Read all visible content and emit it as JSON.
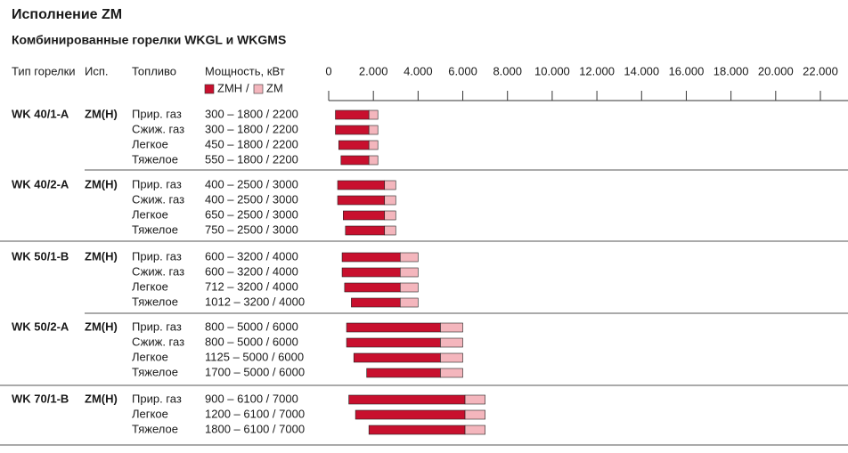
{
  "chart_data": {
    "type": "range-bar",
    "title": "Исполнение ZM",
    "subtitle": "Комбинированные горелки WKGL и WKGMS",
    "columns": [
      "Тип горелки",
      "Исп.",
      "Топливо",
      "Мощность, кВт"
    ],
    "series": [
      {
        "name": "ZMH",
        "color": "#c8102e"
      },
      {
        "name": "ZM",
        "color": "#f4b6bd"
      }
    ],
    "legend_separator": "/",
    "xlim": [
      0,
      22000
    ],
    "xticks": [
      0,
      {
        "value": 2000,
        "label": "2.000"
      },
      {
        "value": 4000,
        "label": "4.000"
      },
      {
        "value": 6000,
        "label": "6.000"
      },
      {
        "value": 8000,
        "label": "8.000"
      },
      {
        "value": 10000,
        "label": "10.000"
      },
      {
        "value": 12000,
        "label": "12.000"
      },
      {
        "value": 14000,
        "label": "14.000"
      },
      {
        "value": 16000,
        "label": "16.000"
      },
      {
        "value": 18000,
        "label": "18.000"
      },
      {
        "value": 20000,
        "label": "20.000"
      },
      {
        "value": 22000,
        "label": "22.000"
      }
    ],
    "groups": [
      {
        "model": "WK 40/1-A",
        "version": "ZM(H)",
        "rows": [
          {
            "fuel": "Прир. газ",
            "power": "300 – 1800 / 2200",
            "values": [
              300,
              1800,
              2200
            ]
          },
          {
            "fuel": "Сжиж. газ",
            "power": "300 – 1800 / 2200",
            "values": [
              300,
              1800,
              2200
            ]
          },
          {
            "fuel": "Легкое",
            "power": "450 – 1800 / 2200",
            "values": [
              450,
              1800,
              2200
            ]
          },
          {
            "fuel": "Тяжелое",
            "power": "550 – 1800 / 2200",
            "values": [
              550,
              1800,
              2200
            ]
          }
        ]
      },
      {
        "model": "WK 40/2-A",
        "version": "ZM(H)",
        "rows": [
          {
            "fuel": "Прир. газ",
            "power": "400 – 2500 / 3000",
            "values": [
              400,
              2500,
              3000
            ]
          },
          {
            "fuel": "Сжиж. газ",
            "power": "400 – 2500 / 3000",
            "values": [
              400,
              2500,
              3000
            ]
          },
          {
            "fuel": "Легкое",
            "power": "650 – 2500 / 3000",
            "values": [
              650,
              2500,
              3000
            ]
          },
          {
            "fuel": "Тяжелое",
            "power": "750 – 2500 / 3000",
            "values": [
              750,
              2500,
              3000
            ]
          }
        ]
      },
      {
        "model": "WK 50/1-B",
        "version": "ZM(H)",
        "rows": [
          {
            "fuel": "Прир. газ",
            "power": "600 – 3200 / 4000",
            "values": [
              600,
              3200,
              4000
            ]
          },
          {
            "fuel": "Сжиж. газ",
            "power": "600 – 3200 / 4000",
            "values": [
              600,
              3200,
              4000
            ]
          },
          {
            "fuel": "Легкое",
            "power": "712 – 3200 / 4000",
            "values": [
              712,
              3200,
              4000
            ]
          },
          {
            "fuel": "Тяжелое",
            "power": "1012 – 3200 / 4000",
            "values": [
              1012,
              3200,
              4000
            ]
          }
        ]
      },
      {
        "model": "WK 50/2-A",
        "version": "ZM(H)",
        "rows": [
          {
            "fuel": "Прир. газ",
            "power": "800 – 5000 / 6000",
            "values": [
              800,
              5000,
              6000
            ]
          },
          {
            "fuel": "Сжиж. газ",
            "power": "800 – 5000 / 6000",
            "values": [
              800,
              5000,
              6000
            ]
          },
          {
            "fuel": "Легкое",
            "power": "1125 – 5000 / 6000",
            "values": [
              1125,
              5000,
              6000
            ]
          },
          {
            "fuel": "Тяжелое",
            "power": "1700 – 5000 / 6000",
            "values": [
              1700,
              5000,
              6000
            ]
          }
        ]
      },
      {
        "model": "WK 70/1-B",
        "version": "ZM(H)",
        "rows": [
          {
            "fuel": "Прир. газ",
            "power": "900 – 6100 / 7000",
            "values": [
              900,
              6100,
              7000
            ]
          },
          {
            "fuel": "Легкое",
            "power": "1200 – 6100 / 7000",
            "values": [
              1200,
              6100,
              7000
            ]
          },
          {
            "fuel": "Тяжелое",
            "power": "1800 – 6100 / 7000",
            "values": [
              1800,
              6100,
              7000
            ]
          }
        ]
      }
    ]
  }
}
